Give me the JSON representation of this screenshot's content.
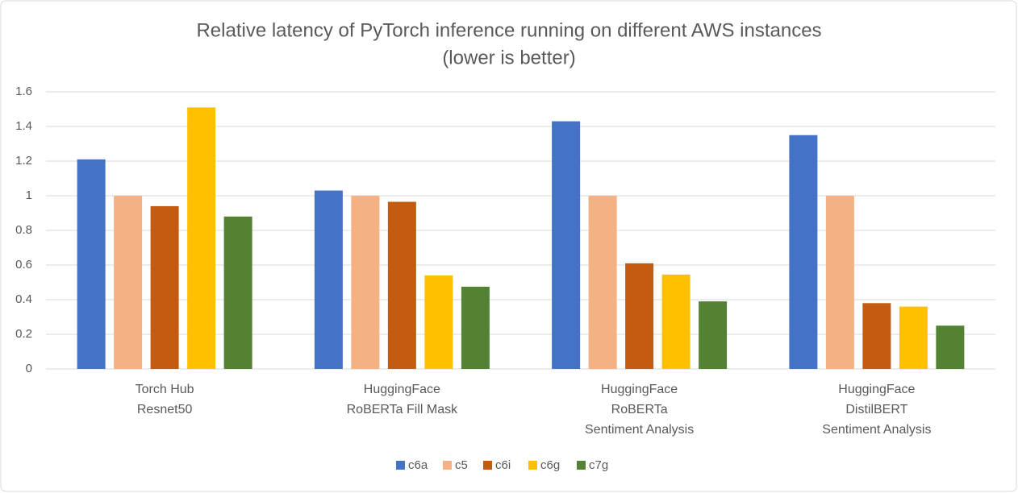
{
  "chart_data": {
    "type": "bar",
    "title": "Relative latency of PyTorch inference running on different AWS instances",
    "subtitle": "(lower is better)",
    "categories": [
      "Torch Hub\nResnet50",
      "HuggingFace\nRoBERTa Fill Mask",
      "HuggingFace\nRoBERTa\nSentiment Analysis",
      "HuggingFace\nDistilBERT\nSentiment Analysis"
    ],
    "series": [
      {
        "name": "c6a",
        "color": "#4472c4",
        "values": [
          1.21,
          1.03,
          1.43,
          1.35
        ]
      },
      {
        "name": "c5",
        "color": "#f4b183",
        "values": [
          1.0,
          1.0,
          1.0,
          1.0
        ]
      },
      {
        "name": "c6i",
        "color": "#c55a11",
        "values": [
          0.94,
          0.965,
          0.61,
          0.38
        ]
      },
      {
        "name": "c6g",
        "color": "#ffc000",
        "values": [
          1.51,
          0.54,
          0.545,
          0.36
        ]
      },
      {
        "name": "c7g",
        "color": "#548235",
        "values": [
          0.88,
          0.475,
          0.39,
          0.25
        ]
      }
    ],
    "ylim": [
      0,
      1.6
    ],
    "yticks": [
      0,
      0.2,
      0.4,
      0.6,
      0.8,
      1,
      1.2,
      1.4,
      1.6
    ],
    "grid": true,
    "legend": "bottom"
  }
}
